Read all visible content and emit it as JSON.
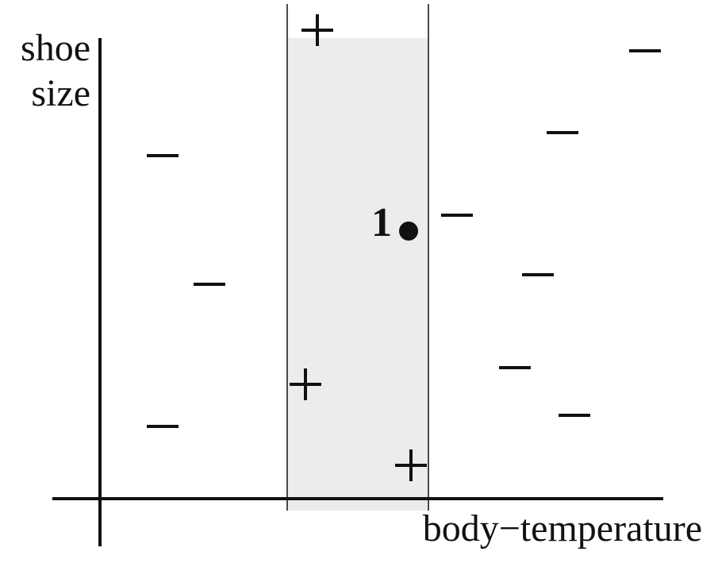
{
  "axes": {
    "y_label": [
      "shoe",
      "size"
    ],
    "x_label": "body−temperature"
  },
  "point": {
    "label": "1"
  }
}
